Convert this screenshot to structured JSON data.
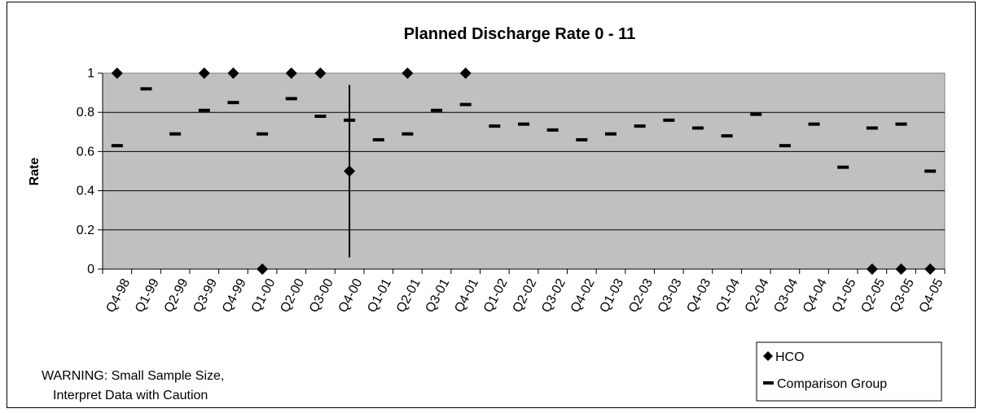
{
  "chart_data": {
    "type": "scatter",
    "title": "Planned Discharge Rate 0 - 11",
    "xlabel": "",
    "ylabel": "Rate",
    "ylim": [
      0,
      1
    ],
    "yticks": [
      "0",
      "0.2",
      "0.4",
      "0.6",
      "0.8",
      "1"
    ],
    "grid": true,
    "legend_position": "bottom-right",
    "categories": [
      "Q4-98",
      "Q1-99",
      "Q2-99",
      "Q3-99",
      "Q4-99",
      "Q1-00",
      "Q2-00",
      "Q3-00",
      "Q4-00",
      "Q1-01",
      "Q2-01",
      "Q3-01",
      "Q4-01",
      "Q1-02",
      "Q2-02",
      "Q3-02",
      "Q4-02",
      "Q1-03",
      "Q2-03",
      "Q3-03",
      "Q4-03",
      "Q1-04",
      "Q2-04",
      "Q3-04",
      "Q4-04",
      "Q1-05",
      "Q2-05",
      "Q3-05",
      "Q4-05"
    ],
    "series": [
      {
        "name": "HCO",
        "marker": "diamond",
        "color": "#000000",
        "values": [
          1,
          null,
          null,
          1,
          1,
          0,
          1,
          1,
          0.5,
          null,
          1,
          null,
          1,
          null,
          null,
          null,
          null,
          null,
          null,
          null,
          null,
          null,
          null,
          null,
          null,
          null,
          0,
          0,
          0
        ]
      },
      {
        "name": "Comparison Group",
        "marker": "dash",
        "color": "#000000",
        "values": [
          0.63,
          0.92,
          0.69,
          0.81,
          0.85,
          0.69,
          0.87,
          0.78,
          0.76,
          0.66,
          0.69,
          0.81,
          0.84,
          0.73,
          0.74,
          0.71,
          0.66,
          0.69,
          0.73,
          0.76,
          0.72,
          0.68,
          0.79,
          0.63,
          0.74,
          0.52,
          0.72,
          0.74,
          0.5
        ]
      }
    ],
    "error_bars": [
      {
        "category": "Q4-00",
        "low": 0.06,
        "high": 0.94
      }
    ],
    "plot_area_color": "#c0c0c0"
  },
  "warning": {
    "line1": "WARNING:  Small Sample Size,",
    "line2": "Interpret Data with Caution"
  }
}
